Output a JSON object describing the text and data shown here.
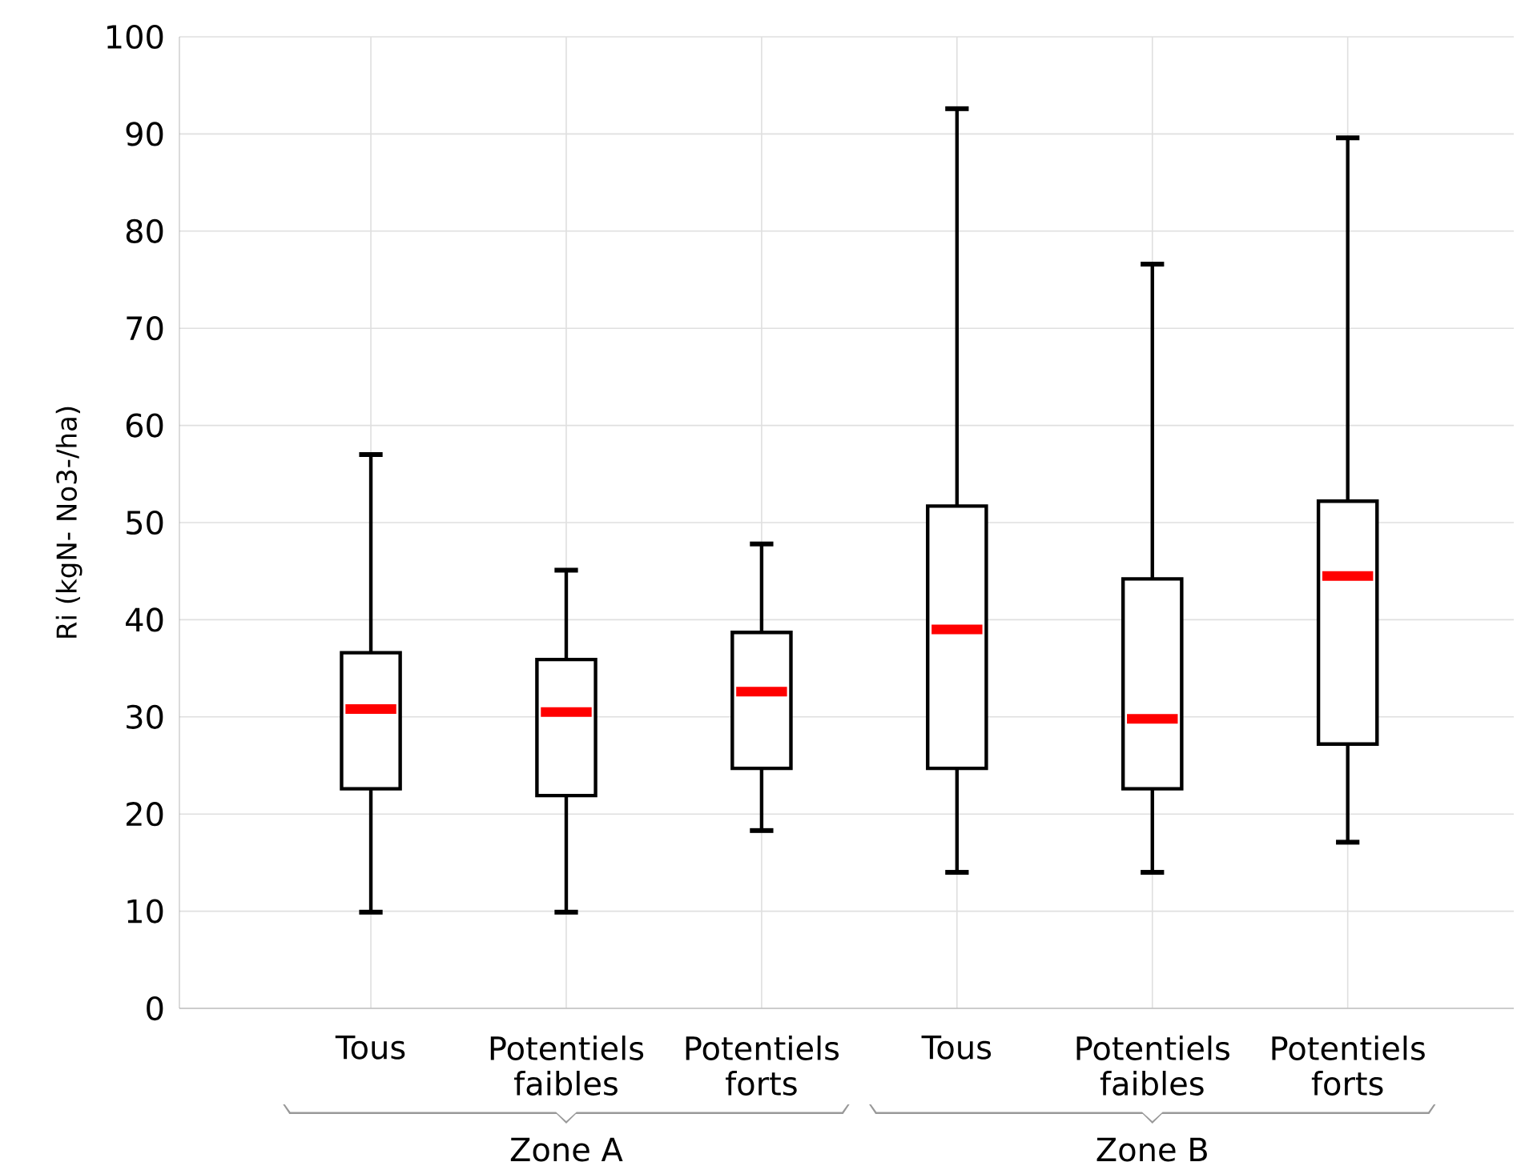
{
  "chart_data": {
    "type": "box",
    "ylabel": "Ri (kgN- No3-/ha)",
    "categories": [
      "Tous",
      "Potentiels faibles",
      "Potentiels forts",
      "Tous",
      "Potentiels faibles",
      "Potentiels forts"
    ],
    "series": [
      {
        "color": "#000000",
        "boxes": [
          {
            "low": 9.9,
            "q1": 22.6,
            "median": 30.8,
            "q3": 36.6,
            "high": 57
          },
          {
            "low": 9.9,
            "q1": 21.9,
            "median": 30.5,
            "q3": 35.9,
            "high": 45.1
          },
          {
            "low": 18.3,
            "q1": 24.7,
            "median": 32.6,
            "q3": 38.7,
            "high": 47.8
          },
          {
            "low": 14,
            "q1": 24.7,
            "median": 39,
            "q3": 51.7,
            "high": 92.6
          },
          {
            "low": 14,
            "q1": 22.6,
            "median": 29.8,
            "q3": 44.2,
            "high": 76.6
          },
          {
            "low": 17.1,
            "q1": 27.2,
            "median": 44.5,
            "q3": 52.2,
            "high": 89.6
          }
        ]
      }
    ],
    "ylim": [
      0,
      100
    ],
    "yticks": [
      0,
      10,
      20,
      30,
      40,
      50,
      60,
      70,
      80,
      90,
      100
    ],
    "grid": true,
    "annotations": [
      "Zone A",
      "Zone B"
    ]
  }
}
